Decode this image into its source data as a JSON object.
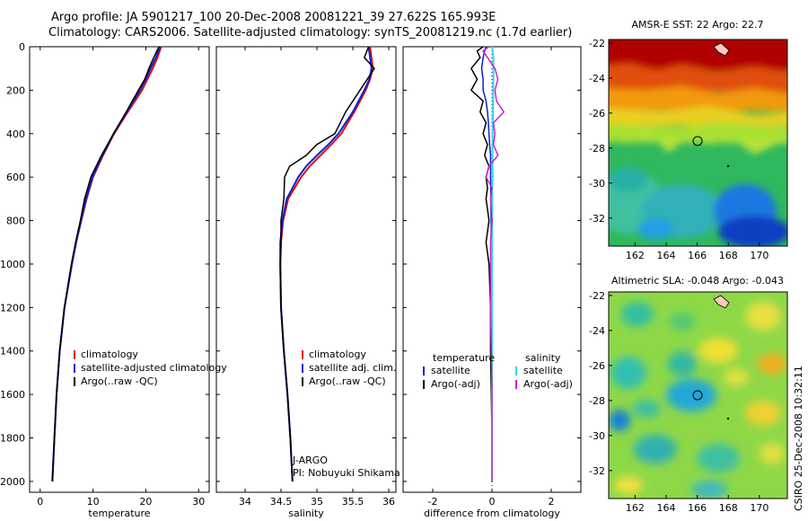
{
  "figure": {
    "title_line1": "Argo profile: JA 5901217_100 20-Dec-2008 20081221_39 27.622S 165.993E",
    "title_line2": "Climatology: CARS2006. Satellite-adjusted climatology: synTS_20081219.nc (1.7d earlier)",
    "credit": "CSIRO 25-Dec-2008 10:32:11"
  },
  "colors": {
    "climatology": "#e01010",
    "satellite": "#1020d0",
    "argo": "#000000",
    "salinity_satellite": "#30d8e8",
    "salinity_argo": "#d020d0"
  },
  "chart_data": [
    {
      "type": "line",
      "xlabel": "temperature",
      "xlim": [
        -2,
        32
      ],
      "ylim": [
        2050,
        0
      ],
      "y_reversed": true,
      "x_ticks": [
        0,
        10,
        20,
        30
      ],
      "y_ticks": [
        0,
        200,
        400,
        600,
        800,
        1000,
        1200,
        1400,
        1600,
        1800,
        2000
      ],
      "legend": [
        "climatology",
        "satellite-adjusted climatology",
        "Argo(..raw -QC)"
      ],
      "legend_position": "lower-right",
      "depth": [
        0,
        50,
        100,
        150,
        200,
        300,
        400,
        500,
        600,
        700,
        800,
        900,
        1000,
        1200,
        1400,
        1600,
        1800,
        2000
      ],
      "series": [
        {
          "name": "climatology",
          "values": [
            22.9,
            22.2,
            21.3,
            20.3,
            19.3,
            16.6,
            14.0,
            11.9,
            10.0,
            8.8,
            7.8,
            6.8,
            6.0,
            4.6,
            3.7,
            3.1,
            2.7,
            2.3
          ]
        },
        {
          "name": "satellite-adjusted climatology",
          "values": [
            22.7,
            21.9,
            20.9,
            20.0,
            18.9,
            16.4,
            13.9,
            11.8,
            9.9,
            8.7,
            7.7,
            6.8,
            6.0,
            4.6,
            3.7,
            3.1,
            2.7,
            2.3
          ]
        },
        {
          "name": "Argo(..raw -QC)",
          "values": [
            22.5,
            21.5,
            20.6,
            19.8,
            18.6,
            16.3,
            13.9,
            11.6,
            9.6,
            8.4,
            7.6,
            6.7,
            5.9,
            4.6,
            3.7,
            3.1,
            2.7,
            2.3
          ]
        }
      ]
    },
    {
      "type": "line",
      "xlabel": "salinity",
      "xlim": [
        33.6,
        36.1
      ],
      "ylim": [
        2050,
        0
      ],
      "y_reversed": true,
      "x_ticks": [
        34,
        34.5,
        35,
        35.5,
        36
      ],
      "legend": [
        "climatology",
        "satellite adj. clim.",
        "Argo(..raw -QC)"
      ],
      "legend_position": "lower-right",
      "annotation": [
        "J-ARGO",
        "PI: Nobuyuki Shikama"
      ],
      "depth": [
        0,
        50,
        100,
        150,
        200,
        300,
        400,
        450,
        500,
        550,
        600,
        700,
        800,
        900,
        1000,
        1200,
        1400,
        1600,
        1800,
        2000
      ],
      "series": [
        {
          "name": "climatology",
          "values": [
            35.74,
            35.76,
            35.78,
            35.74,
            35.68,
            35.52,
            35.34,
            35.2,
            35.05,
            34.9,
            34.78,
            34.6,
            34.53,
            34.5,
            34.49,
            34.5,
            34.54,
            34.59,
            34.63,
            34.66
          ]
        },
        {
          "name": "satellite adj. clim.",
          "values": [
            35.72,
            35.74,
            35.76,
            35.73,
            35.66,
            35.5,
            35.3,
            35.16,
            35.0,
            34.85,
            34.74,
            34.58,
            34.52,
            34.49,
            34.49,
            34.5,
            34.54,
            34.59,
            34.63,
            34.66
          ]
        },
        {
          "name": "Argo(..raw -QC)",
          "values": [
            35.72,
            35.66,
            35.8,
            35.7,
            35.6,
            35.4,
            35.25,
            35.0,
            34.85,
            34.62,
            34.55,
            34.54,
            34.5,
            34.5,
            34.49,
            34.5,
            34.54,
            34.59,
            34.63,
            34.66
          ]
        }
      ]
    },
    {
      "type": "line",
      "xlabel": "difference from climatology",
      "xlim": [
        -3,
        3
      ],
      "ylim": [
        2050,
        0
      ],
      "y_reversed": true,
      "x_ticks": [
        -2,
        0,
        2
      ],
      "legend_groups": [
        {
          "heading": "temperature",
          "items": [
            "satellite",
            "Argo(-adj)"
          ]
        },
        {
          "heading": "salinity",
          "items": [
            "satellite",
            "Argo(-adj)"
          ]
        }
      ],
      "legend_position": "lower-right",
      "depth": [
        0,
        20,
        50,
        100,
        150,
        200,
        250,
        300,
        350,
        400,
        450,
        500,
        550,
        600,
        650,
        700,
        800,
        900,
        1000,
        1200,
        1400,
        1600,
        1800,
        2000
      ],
      "series": [
        {
          "name": "temperature satellite",
          "values": [
            -0.2,
            -0.25,
            -0.3,
            -0.35,
            -0.3,
            -0.3,
            -0.2,
            -0.15,
            -0.12,
            -0.1,
            -0.08,
            -0.05,
            -0.05,
            -0.05,
            -0.04,
            -0.04,
            -0.03,
            -0.02,
            -0.02,
            -0.01,
            -0.01,
            0.0,
            0.0,
            0.0
          ]
        },
        {
          "name": "temperature Argo(-adj)",
          "values": [
            -0.3,
            -0.5,
            -0.4,
            -0.7,
            -0.5,
            -0.7,
            -0.3,
            -0.4,
            -0.2,
            -0.3,
            -0.15,
            -0.25,
            -0.1,
            -0.2,
            -0.15,
            -0.2,
            -0.1,
            -0.2,
            -0.1,
            -0.05,
            -0.05,
            -0.02,
            0.0,
            0.0
          ]
        },
        {
          "name": "salinity satellite",
          "values": [
            0.0,
            0.02,
            0.05,
            0.05,
            0.05,
            0.04,
            0.04,
            0.03,
            0.03,
            0.02,
            0.02,
            0.02,
            0.02,
            0.02,
            0.01,
            0.01,
            0.01,
            0.0,
            0.0,
            0.0,
            0.0,
            0.0,
            0.0,
            0.0
          ]
        },
        {
          "name": "salinity Argo(-adj)",
          "values": [
            -0.1,
            -0.3,
            -0.15,
            0.1,
            0.2,
            0.1,
            0.15,
            0.4,
            0.05,
            0.1,
            0.05,
            0.2,
            -0.1,
            -0.2,
            0.0,
            -0.05,
            0.0,
            -0.05,
            -0.05,
            -0.05,
            -0.02,
            0.0,
            0.0,
            0.0
          ]
        }
      ]
    },
    {
      "type": "heatmap",
      "title": "AMSR-E SST: 22 Argo: 22.7",
      "x_ticks": [
        162,
        164,
        166,
        168,
        170
      ],
      "y_ticks": [
        -22,
        -24,
        -26,
        -28,
        -30,
        -32
      ],
      "xlim": [
        160.3,
        171.8
      ],
      "ylim": [
        -33.6,
        -21.8
      ],
      "profile_marker": {
        "lon": 165.993,
        "lat": -27.622
      }
    },
    {
      "type": "heatmap",
      "title": "Altimetric SLA: -0.048 Argo: -0.043",
      "x_ticks": [
        162,
        164,
        166,
        168,
        170
      ],
      "y_ticks": [
        -22,
        -24,
        -26,
        -28,
        -30,
        -32
      ],
      "xlim": [
        160.3,
        171.8
      ],
      "ylim": [
        -33.6,
        -21.8
      ],
      "profile_marker": {
        "lon": 165.993,
        "lat": -27.622
      }
    }
  ]
}
